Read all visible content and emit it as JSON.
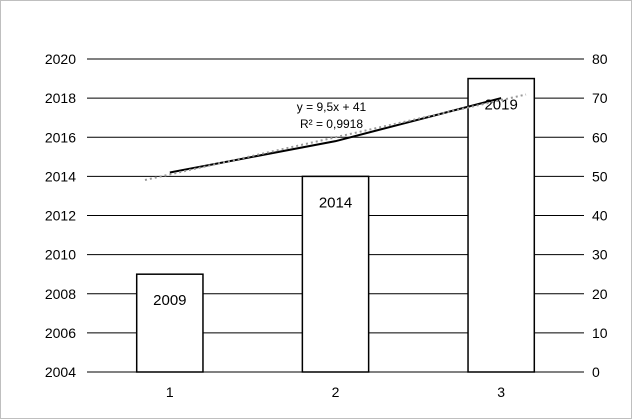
{
  "chart_data": {
    "type": "bar",
    "categories": [
      "1",
      "2",
      "3"
    ],
    "series": [
      {
        "values": [
          2009,
          2014,
          2019
        ],
        "axis": "left",
        "style": "bar"
      },
      {
        "values": [
          51,
          59,
          70
        ],
        "axis": "right",
        "style": "line"
      }
    ],
    "data_labels": [
      "2009",
      "2014",
      "2019"
    ],
    "trendline": {
      "series_index": 1,
      "type": "linear",
      "slope": 9.5,
      "intercept": 41,
      "equation": "y = 9,5x + 41",
      "r_squared": "R² = 0,9918"
    },
    "y_left": {
      "lim": [
        2004,
        2020
      ],
      "ticks": [
        "2004",
        "2006",
        "2008",
        "2010",
        "2012",
        "2014",
        "2016",
        "2018",
        "2020"
      ]
    },
    "y_right": {
      "lim": [
        0,
        80
      ],
      "ticks": [
        "0",
        "10",
        "20",
        "30",
        "40",
        "50",
        "60",
        "70",
        "80"
      ]
    },
    "grid": true,
    "legend": "none",
    "colors": {
      "bar_fill": "#ffffff",
      "bar_stroke": "#000000",
      "line": "#000000",
      "trend": "#999999",
      "grid": "#000000"
    }
  }
}
